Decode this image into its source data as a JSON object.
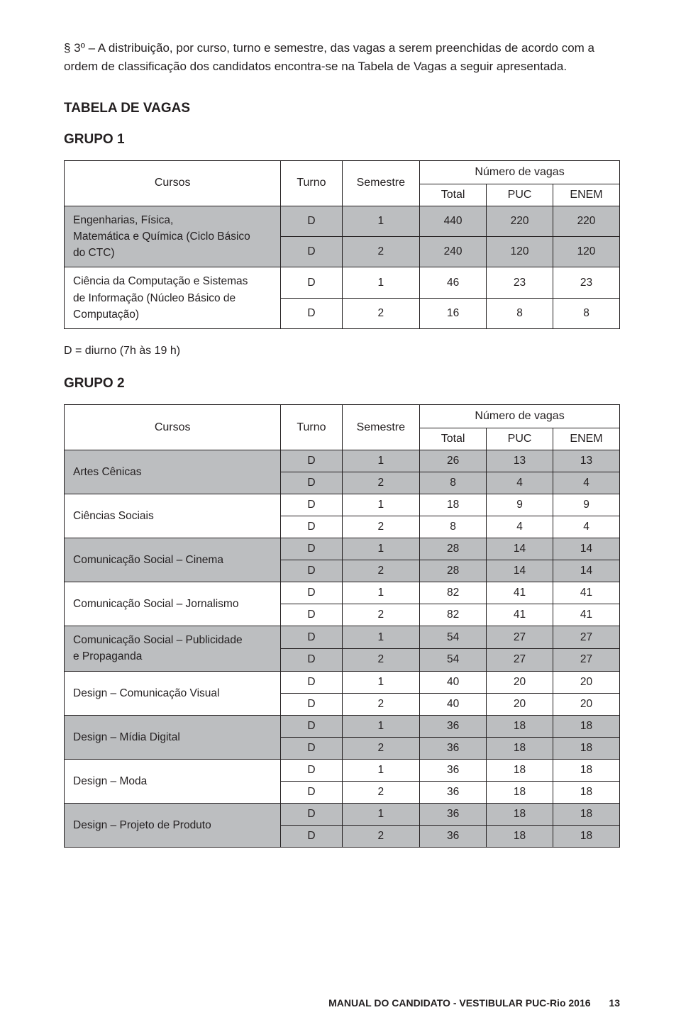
{
  "intro": "§ 3º – A distribuição, por curso, turno e semestre, das vagas a serem preenchidas de acordo com a ordem de classificação dos candidatos encontra-se na Tabela de Vagas a seguir apresentada.",
  "sectionTitle": "TABELA DE VAGAS",
  "legend": "D = diurno (7h às 19 h)",
  "footer": {
    "text": "MANUAL DO CANDIDATO - VESTIBULAR PUC-Rio 2016",
    "page": "13"
  },
  "headers": {
    "cursos": "Cursos",
    "turno": "Turno",
    "semestre": "Semestre",
    "numVagas": "Número de vagas",
    "total": "Total",
    "puc": "PUC",
    "enem": "ENEM"
  },
  "colors": {
    "grayFill": "#bcbec0",
    "border": "#231f20",
    "background": "#ffffff"
  },
  "group1": {
    "title": "GRUPO 1",
    "rows": [
      {
        "course": "Engenharias, Física,<br>Matemática e Química (Ciclo Básico<br>do CTC)",
        "data": [
          [
            "D",
            "1",
            "440",
            "220",
            "220"
          ],
          [
            "D",
            "2",
            "240",
            "120",
            "120"
          ]
        ],
        "gray": true
      },
      {
        "course": "Ciência da Computação e Sistemas<br>de Informação (Núcleo Básico de<br>Computação)",
        "data": [
          [
            "D",
            "1",
            "46",
            "23",
            "23"
          ],
          [
            "D",
            "2",
            "16",
            "8",
            "8"
          ]
        ],
        "gray": false
      }
    ]
  },
  "group2": {
    "title": "GRUPO 2",
    "rows": [
      {
        "course": "Artes Cênicas",
        "gray": true,
        "data": [
          [
            "D",
            "1",
            "26",
            "13",
            "13"
          ],
          [
            "D",
            "2",
            "8",
            "4",
            "4"
          ]
        ]
      },
      {
        "course": "Ciências Sociais",
        "gray": false,
        "data": [
          [
            "D",
            "1",
            "18",
            "9",
            "9"
          ],
          [
            "D",
            "2",
            "8",
            "4",
            "4"
          ]
        ]
      },
      {
        "course": "Comunicação Social – Cinema",
        "gray": true,
        "data": [
          [
            "D",
            "1",
            "28",
            "14",
            "14"
          ],
          [
            "D",
            "2",
            "28",
            "14",
            "14"
          ]
        ]
      },
      {
        "course": "Comunicação Social – Jornalismo",
        "gray": false,
        "data": [
          [
            "D",
            "1",
            "82",
            "41",
            "41"
          ],
          [
            "D",
            "2",
            "82",
            "41",
            "41"
          ]
        ]
      },
      {
        "course": "Comunicação Social – Publicidade<br>e Propaganda",
        "gray": true,
        "data": [
          [
            "D",
            "1",
            "54",
            "27",
            "27"
          ],
          [
            "D",
            "2",
            "54",
            "27",
            "27"
          ]
        ]
      },
      {
        "course": "Design – Comunicação Visual",
        "gray": false,
        "data": [
          [
            "D",
            "1",
            "40",
            "20",
            "20"
          ],
          [
            "D",
            "2",
            "40",
            "20",
            "20"
          ]
        ]
      },
      {
        "course": "Design – Mídia Digital",
        "gray": true,
        "data": [
          [
            "D",
            "1",
            "36",
            "18",
            "18"
          ],
          [
            "D",
            "2",
            "36",
            "18",
            "18"
          ]
        ]
      },
      {
        "course": "Design – Moda",
        "gray": false,
        "data": [
          [
            "D",
            "1",
            "36",
            "18",
            "18"
          ],
          [
            "D",
            "2",
            "36",
            "18",
            "18"
          ]
        ]
      },
      {
        "course": "Design – Projeto de Produto",
        "gray": true,
        "data": [
          [
            "D",
            "1",
            "36",
            "18",
            "18"
          ],
          [
            "D",
            "2",
            "36",
            "18",
            "18"
          ]
        ]
      }
    ]
  }
}
